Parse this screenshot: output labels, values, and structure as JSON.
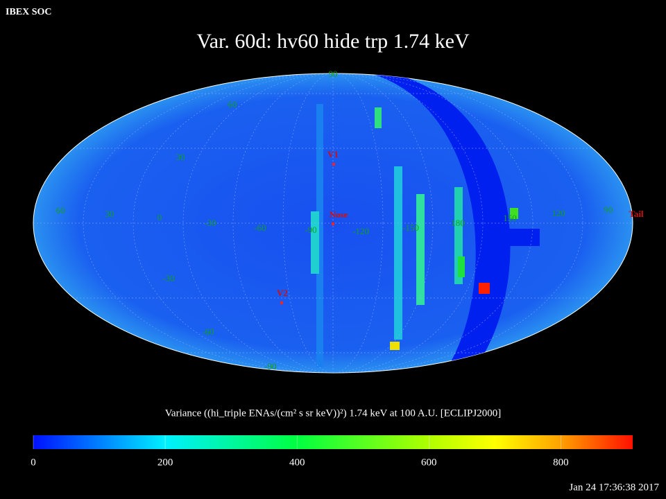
{
  "header": {
    "corner": "IBEX SOC",
    "title": "Var. 60d: hv60 hide trp 1.74 keV"
  },
  "map": {
    "latitude_labels": [
      "90",
      "60",
      "30",
      "-30",
      "-60",
      "-90"
    ],
    "longitude_labels": [
      "60",
      "30",
      "0",
      "-30",
      "-60",
      "-90",
      "-120",
      "-150",
      "180",
      "150",
      "120",
      "90"
    ],
    "markers": [
      "V1",
      "Nose",
      "V2",
      "Tail"
    ]
  },
  "colorbar": {
    "label": "Variance ((hi_triple ENAs/(cm² s sr keV))²) 1.74 keV at 100 A.U. [ECLIPJ2000]",
    "range": [
      0,
      909
    ],
    "ticks": [
      0,
      200,
      400,
      600,
      800
    ]
  },
  "footer": {
    "timestamp": "Jan 24 17:36:38 2017"
  }
}
